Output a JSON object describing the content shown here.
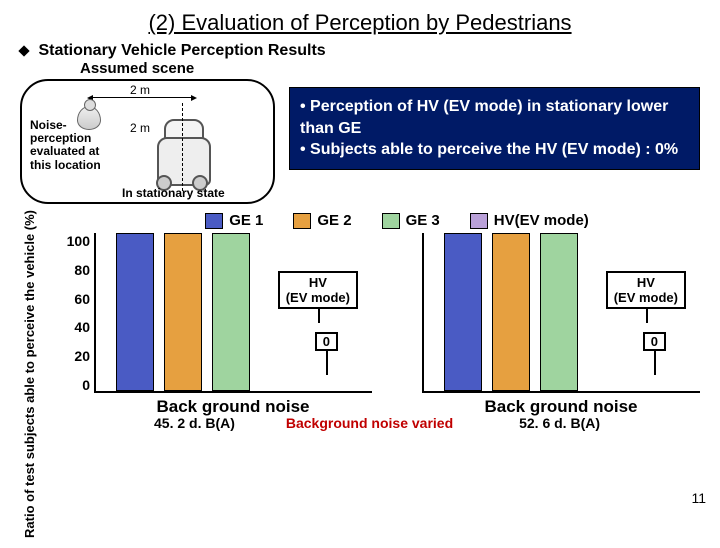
{
  "title": "(2) Evaluation of Perception by Pedestrians",
  "subtitle": "Stationary Vehicle Perception Results",
  "assumed_scene_label": "Assumed scene",
  "scene": {
    "dist_h": "2 m",
    "dist_v": "2 m",
    "note": "Noise-perception evaluated at this location",
    "state": "In stationary state"
  },
  "summary": {
    "bullet1": "• Perception of HV (EV mode) in stationary lower than GE",
    "bullet2": "• Subjects able to perceive the HV (EV mode) : 0%"
  },
  "legend": [
    {
      "label": "GE 1",
      "color": "#4a5bc4"
    },
    {
      "label": "GE 2",
      "color": "#e6a040"
    },
    {
      "label": "GE 3",
      "color": "#9fd49f"
    },
    {
      "label": "HV(EV mode)",
      "color": "#b9a0d8"
    }
  ],
  "ylabel": "Ratio of test subjects able to perceive the vehicle (%)",
  "yticks": [
    "100",
    "80",
    "60",
    "40",
    "20",
    "0"
  ],
  "panels": [
    {
      "bars": [
        {
          "series": 0,
          "value": 100
        },
        {
          "series": 1,
          "value": 100
        },
        {
          "series": 2,
          "value": 100
        },
        {
          "series": 3,
          "value": 0
        }
      ],
      "hv_label": "HV\n(EV mode)",
      "hv_zero": "0",
      "xlabel_top": "Back ground noise",
      "xlabel_bottom": "45. 2 d. B(A)"
    },
    {
      "bars": [
        {
          "series": 0,
          "value": 100
        },
        {
          "series": 1,
          "value": 100
        },
        {
          "series": 2,
          "value": 100
        },
        {
          "series": 3,
          "value": 0
        }
      ],
      "hv_label": "HV\n(EV mode)",
      "hv_zero": "0",
      "xlabel_top": "Back ground noise",
      "xlabel_bottom": "52. 6 d. B(A)"
    }
  ],
  "bg_varied": "Background noise varied",
  "page_number": "11"
}
